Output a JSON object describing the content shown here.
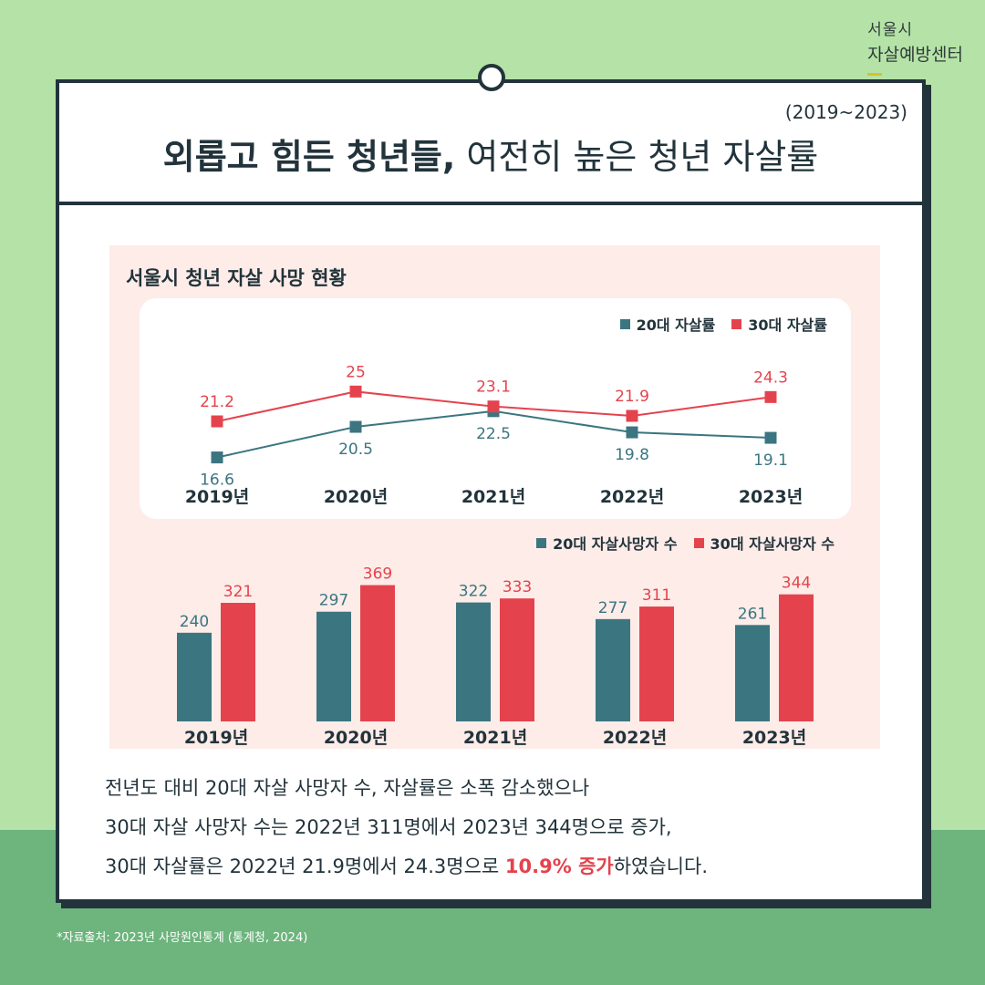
{
  "brand": {
    "line1": "서울시",
    "line2": "자살예방센터"
  },
  "header": {
    "period": "(2019~2023)",
    "title_bold": "외롭고 힘든 청년들,",
    "title_regular": " 여전히 높은 청년 자살률"
  },
  "panel_title": "서울시 청년 자살 사망 현황",
  "colors": {
    "teal": "#3b7580",
    "red": "#e4434d",
    "dark": "#22333b"
  },
  "chart_data": [
    {
      "type": "line",
      "categories": [
        "2019년",
        "2020년",
        "2021년",
        "2022년",
        "2023년"
      ],
      "series": [
        {
          "name": "20대 자살률",
          "values": [
            16.6,
            20.5,
            22.5,
            19.8,
            19.1
          ]
        },
        {
          "name": "30대 자살률",
          "values": [
            21.2,
            25,
            23.1,
            21.9,
            24.3
          ]
        }
      ]
    },
    {
      "type": "bar",
      "categories": [
        "2019년",
        "2020년",
        "2021년",
        "2022년",
        "2023년"
      ],
      "series": [
        {
          "name": "20대 자살사망자 수",
          "values": [
            240,
            297,
            322,
            277,
            261
          ]
        },
        {
          "name": "30대 자살사망자 수",
          "values": [
            321,
            369,
            333,
            311,
            344
          ]
        }
      ]
    }
  ],
  "description": {
    "line1": "전년도 대비 20대 자살 사망자 수, 자살률은 소폭 감소했으나",
    "line2": "30대 자살 사망자 수는  2022년 311명에서 2023년 344명으로 증가,",
    "line3_pre": "30대 자살률은 2022년 21.9명에서 24.3명으로 ",
    "line3_highlight": "10.9% 증가",
    "line3_post": "하였습니다."
  },
  "source": "*자료출처: 2023년 사망원인통계 (통계청, 2024)"
}
